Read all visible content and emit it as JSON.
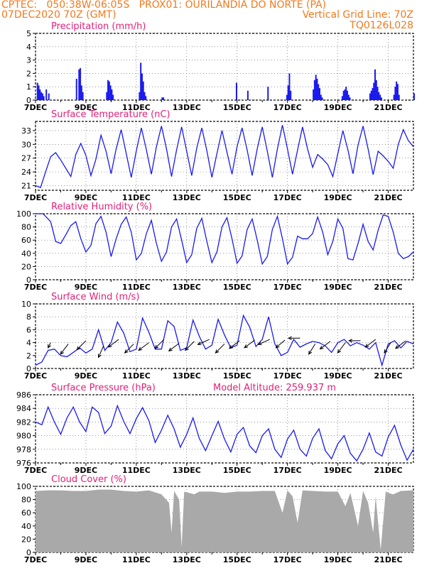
{
  "header": {
    "line1_left": "CPTEC:   050:38W-06:05S   PROX01: OURILANDIA DO NORTE (PA)",
    "line2_left": "07DEC2020 70Z (GMT)",
    "line2_right": "Vertical Grid Line: 70Z",
    "line3_right": "TQ0126L028"
  },
  "colors": {
    "header": "#f07a1e",
    "title": "#e0207a",
    "series": "#1a1aee",
    "cloud": "#a9a9a9",
    "arrow": "#000000"
  },
  "x_axis": {
    "ticks": [
      "7DEC",
      "9DEC",
      "11DEC",
      "13DEC",
      "15DEC",
      "17DEC",
      "19DEC",
      "21DEC"
    ],
    "days_span": 15
  },
  "chart_data": [
    {
      "type": "bar",
      "title": "Precipitation (mm/h)",
      "ylim": [
        0,
        5
      ],
      "yticks": [
        "0",
        "1",
        "2",
        "3",
        "4",
        "5"
      ],
      "grid": true,
      "series": [
        {
          "days": [
            0.05,
            0.1,
            0.15,
            0.2,
            0.25,
            0.3,
            0.4,
            0.5,
            1.6,
            1.7,
            1.75,
            1.8,
            1.85,
            2.8,
            2.85,
            2.9,
            2.95,
            3.0,
            3.05,
            4.1,
            4.15,
            4.2,
            4.25,
            4.3,
            4.35,
            5.0,
            5.05,
            7.95,
            8.4,
            9.2,
            9.95,
            10.0,
            10.05,
            10.1,
            11.0,
            11.05,
            11.1,
            11.15,
            11.2,
            11.25,
            11.3,
            11.35,
            12.15,
            12.2,
            12.25,
            12.3,
            12.35,
            12.4,
            12.45,
            13.25,
            13.3,
            13.35,
            13.4,
            13.45,
            13.5,
            13.55,
            13.6,
            13.65,
            13.7,
            14.2,
            14.25,
            14.3,
            14.35,
            14.4,
            15.0
          ],
          "values": [
            1.3,
            1.1,
            0.8,
            0.6,
            0.5,
            0.3,
            0.8,
            0.5,
            1.6,
            2.3,
            2.4,
            1.1,
            0.6,
            0.6,
            1.5,
            1.4,
            1.1,
            0.8,
            0.4,
            0.6,
            2.8,
            2.0,
            1.4,
            0.6,
            0.3,
            0.2,
            0.2,
            1.3,
            0.7,
            1.0,
            0.4,
            1.1,
            2.0,
            0.7,
            0.8,
            1.5,
            1.9,
            1.6,
            1.2,
            0.9,
            0.4,
            0.2,
            0.3,
            0.7,
            0.8,
            1.0,
            0.7,
            0.4,
            0.2,
            0.5,
            0.7,
            0.9,
            1.3,
            2.3,
            1.5,
            1.0,
            0.6,
            0.4,
            0.2,
            0.4,
            1.0,
            1.4,
            1.2,
            0.4,
            0.5
          ]
        }
      ]
    },
    {
      "type": "line",
      "title": "Surface Temperature (nC)",
      "ylim": [
        20,
        35
      ],
      "yticks": [
        "21",
        "24",
        "27",
        "30",
        "33"
      ],
      "grid": true,
      "series": [
        {
          "days": [
            0,
            0.2,
            0.4,
            0.6,
            0.8,
            1.0,
            1.2,
            1.4,
            1.6,
            1.8,
            2.0,
            2.2,
            2.4,
            2.6,
            2.8,
            3.0,
            3.2,
            3.4,
            3.6,
            3.8,
            4.0,
            4.2,
            4.4,
            4.6,
            4.8,
            5.0,
            5.2,
            5.4,
            5.6,
            5.8,
            6.0,
            6.2,
            6.4,
            6.6,
            6.8,
            7.0,
            7.2,
            7.4,
            7.6,
            7.8,
            8.0,
            8.2,
            8.4,
            8.6,
            8.8,
            9.0,
            9.2,
            9.4,
            9.6,
            9.8,
            10.0,
            10.2,
            10.4,
            10.6,
            10.8,
            11.0,
            11.2,
            11.4,
            11.6,
            11.8,
            12.0,
            12.2,
            12.4,
            12.6,
            12.8,
            13.0,
            13.2,
            13.4,
            13.6,
            13.8,
            14.0,
            14.2,
            14.4,
            14.6,
            14.8,
            15.0
          ],
          "values": [
            21.0,
            20.6,
            24.0,
            27.3,
            28.2,
            26.6,
            24.8,
            23.0,
            27.8,
            30.2,
            27.6,
            23.2,
            26.8,
            32.0,
            28.5,
            23.6,
            29.0,
            33.2,
            28.0,
            22.8,
            28.6,
            33.6,
            28.8,
            23.5,
            29.5,
            34.0,
            29.0,
            23.0,
            28.8,
            33.8,
            28.5,
            23.2,
            29.2,
            33.6,
            28.6,
            22.8,
            28.0,
            33.0,
            28.3,
            23.5,
            29.5,
            33.6,
            28.8,
            23.2,
            29.0,
            33.8,
            28.5,
            22.8,
            29.0,
            34.2,
            29.0,
            23.5,
            28.8,
            33.8,
            29.0,
            25.0,
            27.8,
            26.8,
            25.6,
            23.0,
            28.0,
            33.0,
            28.8,
            23.6,
            29.8,
            34.0,
            29.0,
            23.4,
            28.5,
            27.5,
            26.3,
            24.8,
            30.0,
            33.2,
            30.8,
            29.5
          ]
        }
      ]
    },
    {
      "type": "line",
      "title": "Relative Humidity (%)",
      "ylim": [
        0,
        100
      ],
      "yticks": [
        "0",
        "20",
        "40",
        "60",
        "80",
        "100"
      ],
      "grid": true,
      "series": [
        {
          "days": [
            0,
            0.3,
            0.6,
            0.8,
            1.0,
            1.2,
            1.4,
            1.6,
            1.8,
            2.0,
            2.2,
            2.4,
            2.6,
            2.8,
            3.0,
            3.2,
            3.4,
            3.6,
            3.8,
            4.0,
            4.2,
            4.4,
            4.6,
            4.8,
            5.0,
            5.2,
            5.4,
            5.6,
            5.8,
            6.0,
            6.2,
            6.4,
            6.6,
            6.8,
            7.0,
            7.2,
            7.4,
            7.6,
            7.8,
            8.0,
            8.2,
            8.4,
            8.6,
            8.8,
            9.0,
            9.2,
            9.4,
            9.6,
            9.8,
            10.0,
            10.2,
            10.4,
            10.6,
            10.8,
            11.0,
            11.2,
            11.4,
            11.6,
            11.8,
            12.0,
            12.2,
            12.4,
            12.6,
            12.8,
            13.0,
            13.2,
            13.4,
            13.6,
            13.8,
            14.0,
            14.2,
            14.4,
            14.6,
            14.8,
            15.0
          ],
          "values": [
            100,
            100,
            88,
            58,
            55,
            68,
            82,
            88,
            62,
            42,
            52,
            85,
            96,
            72,
            35,
            62,
            84,
            95,
            72,
            30,
            40,
            70,
            90,
            55,
            28,
            42,
            80,
            92,
            60,
            26,
            38,
            78,
            93,
            58,
            26,
            42,
            80,
            94,
            62,
            25,
            36,
            76,
            92,
            60,
            24,
            35,
            76,
            96,
            62,
            24,
            34,
            66,
            62,
            62,
            70,
            95,
            72,
            38,
            58,
            92,
            78,
            32,
            30,
            55,
            84,
            58,
            45,
            75,
            98,
            96,
            72,
            40,
            32,
            35,
            42
          ]
        }
      ]
    },
    {
      "type": "line",
      "title": "Surface Wind (m/s)",
      "ylim": [
        0,
        10
      ],
      "yticks": [
        "0",
        "2",
        "4",
        "6",
        "8",
        "10"
      ],
      "grid": true,
      "series": [
        {
          "days": [
            0,
            0.25,
            0.5,
            0.75,
            1.0,
            1.25,
            1.5,
            1.75,
            2.0,
            2.25,
            2.5,
            2.75,
            3.0,
            3.25,
            3.5,
            3.75,
            4.0,
            4.25,
            4.5,
            4.75,
            5.0,
            5.25,
            5.5,
            5.75,
            6.0,
            6.25,
            6.5,
            6.75,
            7.0,
            7.25,
            7.5,
            7.75,
            8.0,
            8.25,
            8.5,
            8.75,
            9.0,
            9.25,
            9.5,
            9.75,
            10.0,
            10.25,
            10.5,
            10.75,
            11.0,
            11.25,
            11.5,
            11.75,
            12.0,
            12.25,
            12.5,
            12.75,
            13.0,
            13.25,
            13.5,
            13.75,
            14.0,
            14.25,
            14.5,
            14.75,
            15.0
          ],
          "values": [
            0.5,
            1.0,
            2.8,
            3.0,
            2.0,
            1.8,
            2.5,
            3.2,
            2.4,
            3.0,
            6.0,
            2.8,
            4.0,
            7.2,
            5.5,
            2.6,
            3.0,
            7.8,
            5.6,
            3.0,
            3.0,
            7.4,
            6.5,
            2.8,
            3.2,
            7.5,
            5.0,
            3.0,
            3.6,
            7.6,
            5.2,
            3.2,
            3.6,
            8.2,
            6.4,
            3.4,
            4.5,
            8.0,
            3.8,
            2.0,
            2.5,
            4.5,
            3.3,
            3.8,
            4.2,
            4.0,
            3.5,
            2.5,
            4.0,
            4.5,
            3.5,
            4.0,
            3.6,
            3.0,
            4.0,
            0.5,
            3.8,
            4.3,
            3.2,
            4.2,
            3.8
          ]
        }
      ],
      "arrows": {
        "days": [
          0.6,
          1.3,
          2.0,
          2.7,
          3.3,
          3.9,
          4.5,
          5.1,
          5.7,
          6.3,
          6.9,
          7.5,
          8.1,
          8.7,
          9.3,
          9.9,
          10.5,
          11.1,
          11.7,
          12.3,
          12.9,
          13.5,
          14.1,
          14.7
        ],
        "speed": [
          4.0,
          3.8,
          4.3,
          3.5,
          4.5,
          3.8,
          4.0,
          4.5,
          3.9,
          4.2,
          4.5,
          3.8,
          4.3,
          4.4,
          4.5,
          4.4,
          4.7,
          3.8,
          4.2,
          4.0,
          4.3,
          4.5,
          4.0,
          4.3
        ],
        "dx": [
          -0.2,
          -0.6,
          -0.7,
          -0.4,
          -0.8,
          -0.7,
          -0.8,
          -0.7,
          -0.8,
          -0.7,
          -0.9,
          -0.7,
          -0.8,
          -0.8,
          -0.9,
          -0.7,
          -0.9,
          -0.5,
          -0.8,
          -0.6,
          -0.9,
          -0.8,
          -0.5,
          -0.8
        ],
        "dy": [
          0.4,
          0.8,
          0.7,
          0.9,
          0.6,
          0.7,
          0.6,
          0.7,
          0.6,
          0.7,
          0.4,
          0.7,
          0.6,
          0.6,
          0.4,
          0.6,
          0.0,
          0.8,
          0.6,
          0.8,
          0.0,
          0.6,
          0.8,
          0.6
        ]
      }
    },
    {
      "type": "line",
      "title": "Surface Pressure (hPa)",
      "annotation": "Model Altitude: 259.937 m",
      "ylim": [
        976,
        986
      ],
      "yticks": [
        "976",
        "978",
        "980",
        "982",
        "984",
        "986"
      ],
      "grid": true,
      "series": [
        {
          "days": [
            0,
            0.25,
            0.5,
            0.75,
            1.0,
            1.25,
            1.5,
            1.75,
            2.0,
            2.25,
            2.5,
            2.75,
            3.0,
            3.25,
            3.5,
            3.75,
            4.0,
            4.25,
            4.5,
            4.75,
            5.0,
            5.25,
            5.5,
            5.75,
            6.0,
            6.25,
            6.5,
            6.75,
            7.0,
            7.25,
            7.5,
            7.75,
            8.0,
            8.25,
            8.5,
            8.75,
            9.0,
            9.25,
            9.5,
            9.75,
            10.0,
            10.25,
            10.5,
            10.75,
            11.0,
            11.25,
            11.5,
            11.75,
            12.0,
            12.25,
            12.5,
            12.75,
            13.0,
            13.25,
            13.5,
            13.75,
            14.0,
            14.25,
            14.5,
            14.75,
            15.0
          ],
          "values": [
            982,
            981.6,
            984.2,
            982,
            980.2,
            982.6,
            984.2,
            982.0,
            980.6,
            984.2,
            983.4,
            980.3,
            981.4,
            984.4,
            982.1,
            980.3,
            982.5,
            984.1,
            982.2,
            979.0,
            980.8,
            983.0,
            981.0,
            978.3,
            980.2,
            982.6,
            979.6,
            977.8,
            980.0,
            982.1,
            979.5,
            977.6,
            980.2,
            981.2,
            978.5,
            977.5,
            980.0,
            981.0,
            978.0,
            976.8,
            979.5,
            980.8,
            978.0,
            977.0,
            979.6,
            981.0,
            977.8,
            976.6,
            978.8,
            980.0,
            977.4,
            976.3,
            978.0,
            980.4,
            977.6,
            977.0,
            979.8,
            981.5,
            978.6,
            976.4,
            978.0
          ]
        }
      ]
    },
    {
      "type": "area",
      "title": "Cloud Cover (%)",
      "ylim": [
        0,
        100
      ],
      "yticks": [
        "0",
        "20",
        "40",
        "60",
        "80",
        "100"
      ],
      "grid": true,
      "series": [
        {
          "days": [
            0,
            0.5,
            1.0,
            1.5,
            2.0,
            2.5,
            3.0,
            3.5,
            4.0,
            4.5,
            5.0,
            5.3,
            5.4,
            5.5,
            5.7,
            5.8,
            5.9,
            6.1,
            6.3,
            6.5,
            7.0,
            7.5,
            8.0,
            8.5,
            9.0,
            9.5,
            9.8,
            10.0,
            10.2,
            10.4,
            10.6,
            11.0,
            11.5,
            12.0,
            12.3,
            12.5,
            12.8,
            13.0,
            13.2,
            13.4,
            13.5,
            13.7,
            13.9,
            14.0,
            14.2,
            14.5,
            15.0
          ],
          "values": [
            93,
            94,
            94,
            93,
            93,
            95,
            95,
            93,
            92,
            94,
            88,
            75,
            30,
            93,
            80,
            8,
            92,
            90,
            88,
            92,
            92,
            90,
            92,
            92,
            93,
            93,
            60,
            94,
            85,
            45,
            94,
            93,
            92,
            92,
            70,
            90,
            40,
            93,
            75,
            30,
            85,
            4,
            92,
            90,
            88,
            93,
            94
          ]
        }
      ]
    }
  ]
}
